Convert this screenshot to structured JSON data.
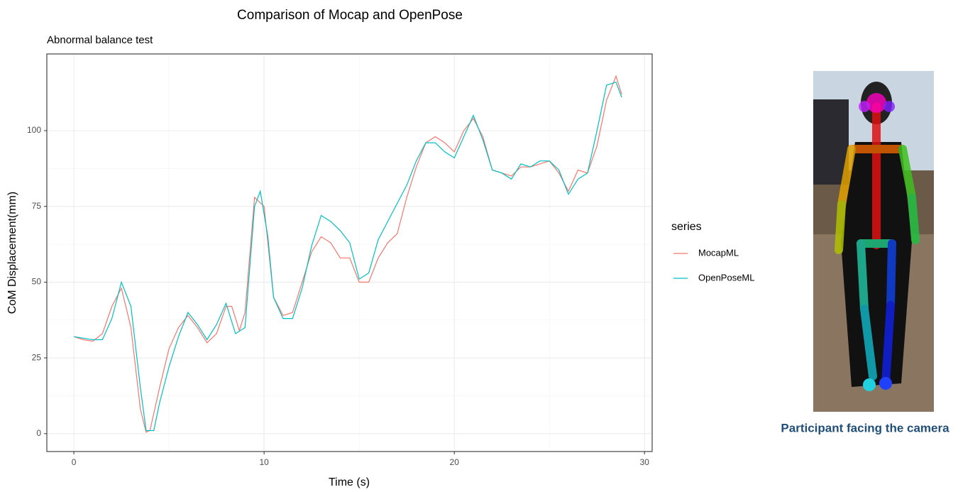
{
  "chart_data": {
    "type": "line",
    "title": "Comparison of Mocap and OpenPose",
    "subtitle": "Abnormal balance test",
    "x_label": "Time (s)",
    "y_label": "CoM Displacement(mm)",
    "legend_title": "series",
    "legend_position": "right",
    "grid": true,
    "xlim": [
      -1.42,
      30.4
    ],
    "ylim": [
      -5.9,
      125.3
    ],
    "xticks": [
      0,
      10,
      20,
      30
    ],
    "yticks": [
      0,
      25,
      50,
      75,
      100
    ],
    "series": [
      {
        "name": "MocapML",
        "color": "#f8766d",
        "x": [
          0,
          0.5,
          1,
          1.5,
          2,
          2.5,
          3,
          3.5,
          3.8,
          4,
          4.5,
          5,
          5.5,
          6,
          6.5,
          7,
          7.5,
          8,
          8.3,
          8.7,
          9,
          9.5,
          10,
          10.5,
          11,
          11.5,
          12,
          12.5,
          13,
          13.5,
          14,
          14.5,
          15,
          15.5,
          16,
          16.5,
          17,
          17.5,
          18,
          18.5,
          19,
          19.5,
          20,
          20.5,
          21,
          21.5,
          22,
          22.5,
          23,
          23.5,
          24,
          24.5,
          25,
          25.5,
          26,
          26.5,
          27,
          27.5,
          28,
          28.5,
          28.8
        ],
        "values": [
          32,
          31,
          30.5,
          33,
          42,
          48,
          35,
          8,
          0.5,
          1,
          15,
          28,
          35,
          39,
          35,
          30,
          33,
          42,
          42,
          34,
          40,
          78,
          75,
          45,
          39,
          40,
          50,
          60,
          65,
          63,
          58,
          58,
          50,
          50,
          58,
          63,
          66,
          78,
          88,
          96,
          98,
          96,
          93,
          100,
          104,
          98,
          87,
          86,
          85,
          88,
          88,
          89,
          90,
          86,
          80,
          87,
          86,
          95,
          110,
          118,
          112
        ]
      },
      {
        "name": "OpenPoseML",
        "color": "#00bfc4",
        "x": [
          0,
          0.5,
          1,
          1.5,
          2,
          2.5,
          3,
          3.5,
          3.8,
          4.2,
          4.5,
          5,
          5.5,
          6,
          6.5,
          7,
          7.5,
          8,
          8.5,
          9,
          9.5,
          9.8,
          10.2,
          10.5,
          11,
          11.5,
          12,
          12.5,
          13,
          13.5,
          14,
          14.5,
          15,
          15.5,
          16,
          16.5,
          17,
          17.5,
          18,
          18.5,
          19,
          19.5,
          20,
          20.5,
          21,
          21.5,
          22,
          22.5,
          23,
          23.5,
          24,
          24.5,
          25,
          25.5,
          26,
          26.5,
          27,
          27.5,
          28,
          28.5,
          28.8
        ],
        "values": [
          32,
          31.5,
          31,
          31,
          38,
          50,
          42,
          15,
          1,
          1,
          10,
          22,
          32,
          40,
          36,
          31,
          36,
          43,
          33,
          35,
          75,
          80,
          65,
          45,
          38,
          38,
          48,
          62,
          72,
          70,
          67,
          63,
          51,
          53,
          64,
          70,
          76,
          82,
          90,
          96,
          96,
          93,
          91,
          98,
          105,
          97,
          87,
          86,
          84,
          89,
          88,
          90,
          90,
          87,
          79,
          84,
          86,
          100,
          115,
          116,
          111
        ]
      }
    ]
  },
  "caption": "Participant facing the camera"
}
